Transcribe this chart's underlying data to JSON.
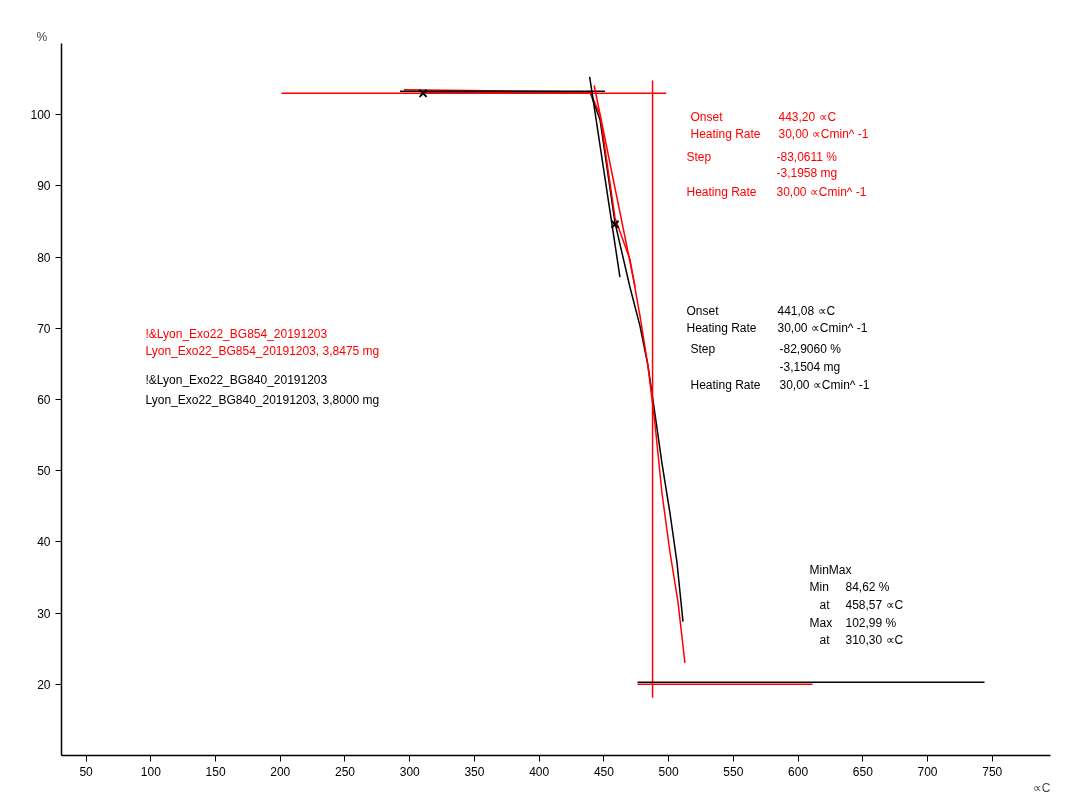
{
  "chart_data": {
    "type": "line",
    "xlabel": "∝C",
    "ylabel": "%",
    "xlim": [
      31,
      795
    ],
    "ylim": [
      10,
      110
    ],
    "xticks": [
      50,
      100,
      150,
      200,
      250,
      300,
      350,
      400,
      450,
      500,
      550,
      600,
      650,
      700,
      750
    ],
    "yticks": [
      20,
      30,
      40,
      50,
      60,
      70,
      80,
      90,
      100
    ],
    "grid": false,
    "series": [
      {
        "color": "#000000",
        "x": [
          310.3,
          439.3,
          447.0,
          458.6,
          470.1,
          477.9,
          484.0,
          489.5,
          494.9,
          501.0,
          506.4,
          511.1
        ],
        "values": [
          103.2,
          103.2,
          99.3,
          84.8,
          75.8,
          70.3,
          64.8,
          57.9,
          51.0,
          44.1,
          37.2,
          28.8
        ]
      },
      {
        "color": "#ff0000",
        "x": [
          295.6,
          439.3,
          447.0,
          458.6,
          470.1,
          477.9,
          484.0,
          489.5,
          494.9,
          501.0,
          507.2,
          512.6
        ],
        "values": [
          103.5,
          103.2,
          100.0,
          85.5,
          79.7,
          71.7,
          64.8,
          56.5,
          46.8,
          38.6,
          31.6,
          23.0
        ]
      },
      {
        "color": "#000000",
        "x": [
          292.5,
          450.8
        ],
        "values": [
          103.3,
          103.3
        ]
      },
      {
        "color": "#ff0000",
        "x": [
          200.9,
          498.2
        ],
        "values": [
          103.0,
          103.0
        ]
      },
      {
        "color": "#000000",
        "x": [
          439.0,
          462.4
        ],
        "values": [
          105.3,
          77.2
        ]
      },
      {
        "color": "#ff0000",
        "x": [
          442.5,
          474.1
        ],
        "values": [
          104.1,
          75.8
        ]
      },
      {
        "color": "#ff0000",
        "x": [
          487.6,
          487.6
        ],
        "values": [
          104.8,
          18.1
        ]
      },
      {
        "color": "#000000",
        "x": [
          476.0,
          744.0
        ],
        "values": [
          20.3,
          20.3
        ]
      },
      {
        "color": "#ff0000",
        "x": [
          476.0,
          611.1
        ],
        "values": [
          20.0,
          20.0
        ]
      },
      {
        "type": "scatter",
        "marker": "cross",
        "color": "#000000",
        "x": [
          310.3,
          458.6
        ],
        "values": [
          103.0,
          84.6
        ]
      }
    ],
    "annotations": [
      "Onset",
      "443,20 ∝C",
      "Heating Rate",
      "30,00 ∝Cmin^ -1",
      "Step",
      "-83,0611 %",
      "-3,1958 mg",
      "Heating Rate",
      "30,00 ∝Cmin^ -1",
      "Onset",
      "441,08 ∝C",
      "Heating Rate",
      "30,00 ∝Cmin^ -1",
      "Step",
      "-82,9060 %",
      "-3,1504 mg",
      "Heating Rate",
      "30,00 ∝Cmin^ -1",
      "MinMax",
      "Min",
      "84,62 %",
      "at",
      "458,57 ∝C",
      "Max",
      "102,99 %",
      "at",
      "310,30 ∝C",
      "!&Lyon_Exo22_BG854_20191203",
      "Lyon_Exo22_BG854_20191203, 3,8475 mg",
      "!&Lyon_Exo22_BG840_20191203",
      "Lyon_Exo22_BG840_20191203, 3,8000 mg"
    ]
  }
}
